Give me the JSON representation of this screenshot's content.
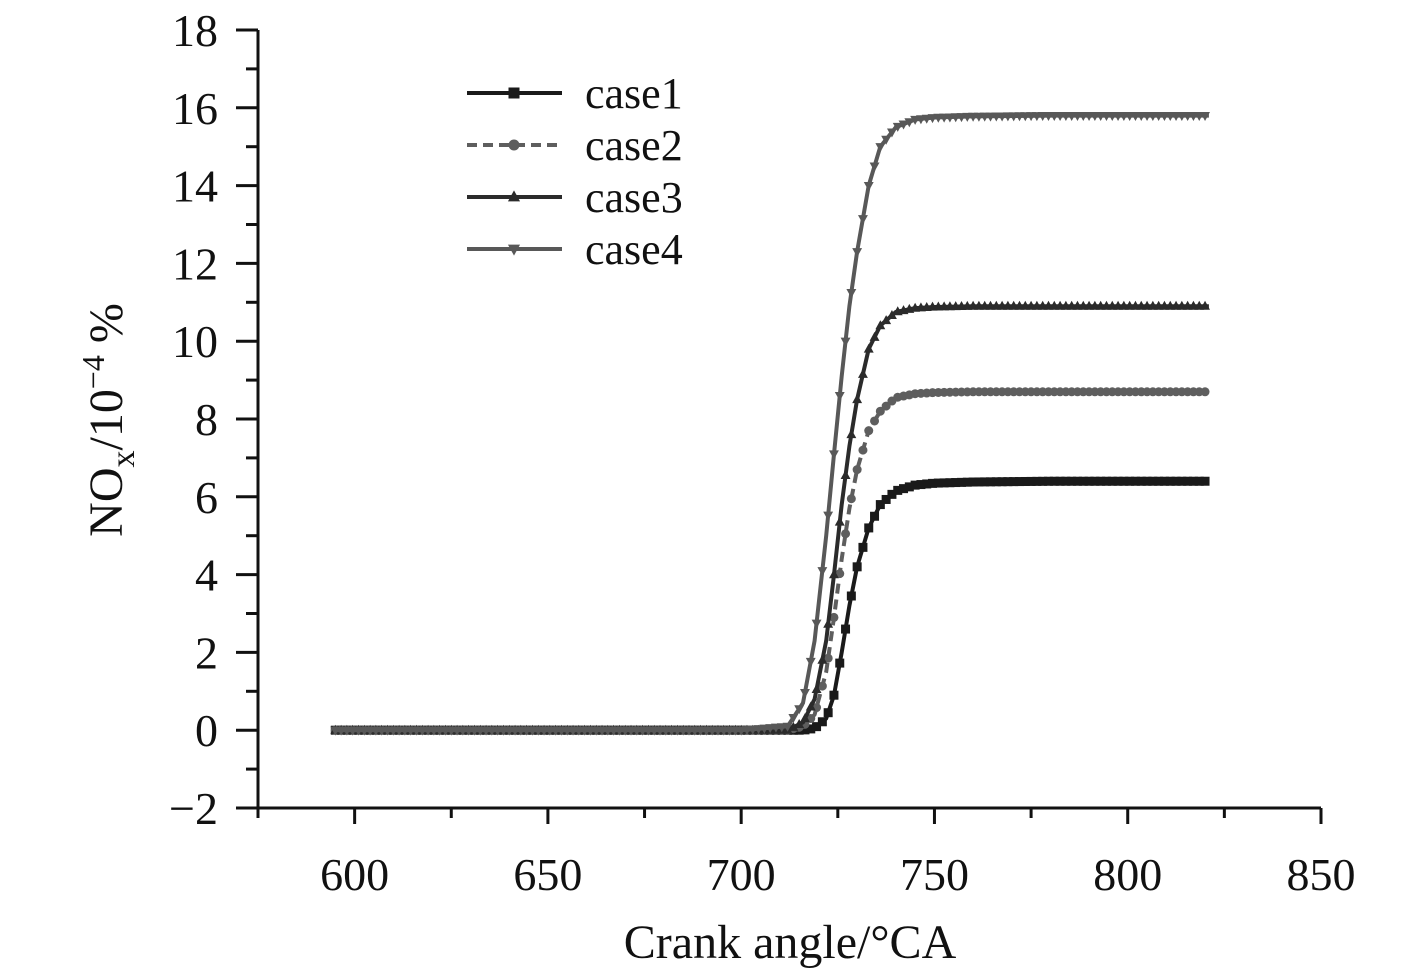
{
  "chart_data": {
    "type": "line",
    "title": "",
    "xlabel": "Crank angle/°CA",
    "ylabel": {
      "base": "NO",
      "sub": "x",
      "mid": "/10",
      "sup": "−4",
      "unit": " %"
    },
    "xlim": [
      575,
      850
    ],
    "ylim": [
      -2,
      18
    ],
    "xticks": [
      600,
      650,
      700,
      750,
      800,
      850
    ],
    "yticks": [
      -2,
      0,
      2,
      4,
      6,
      8,
      10,
      12,
      14,
      16,
      18
    ],
    "ytick_labels": [
      "−2",
      "0",
      "2",
      "4",
      "6",
      "8",
      "10",
      "12",
      "14",
      "16",
      "18"
    ],
    "grid": false,
    "legend_position": "top-left",
    "x": [
      595,
      600,
      650,
      700,
      712,
      716,
      719,
      722,
      724,
      726,
      728,
      730,
      733,
      736,
      740,
      745,
      750,
      760,
      780,
      800,
      821
    ],
    "series": [
      {
        "name": "case1",
        "color": "#1a1a1a",
        "marker": "square",
        "dash": "solid",
        "values": [
          0,
          0,
          0,
          0,
          0,
          0,
          0.05,
          0.3,
          0.9,
          2.0,
          3.2,
          4.2,
          5.2,
          5.8,
          6.15,
          6.3,
          6.35,
          6.38,
          6.4,
          6.4,
          6.4
        ]
      },
      {
        "name": "case2",
        "color": "#5e5e5e",
        "marker": "circle",
        "dash": "dashed",
        "values": [
          0,
          0,
          0,
          0,
          0,
          0.1,
          0.4,
          1.5,
          2.9,
          4.4,
          5.7,
          6.7,
          7.7,
          8.2,
          8.55,
          8.65,
          8.68,
          8.7,
          8.7,
          8.7,
          8.7
        ]
      },
      {
        "name": "case3",
        "color": "#2b2b2b",
        "marker": "triangle-up",
        "dash": "solid",
        "values": [
          0,
          0,
          0,
          0,
          0,
          0.2,
          0.8,
          2.3,
          4.0,
          5.8,
          7.3,
          8.5,
          9.8,
          10.4,
          10.75,
          10.85,
          10.88,
          10.9,
          10.9,
          10.9,
          10.9
        ]
      },
      {
        "name": "case4",
        "color": "#585858",
        "marker": "triangle-down",
        "dash": "solid",
        "values": [
          0,
          0,
          0,
          0,
          0.1,
          0.7,
          2.3,
          5.0,
          7.1,
          9.1,
          10.9,
          12.3,
          14.0,
          15.0,
          15.5,
          15.7,
          15.75,
          15.78,
          15.8,
          15.8,
          15.8
        ]
      }
    ]
  }
}
